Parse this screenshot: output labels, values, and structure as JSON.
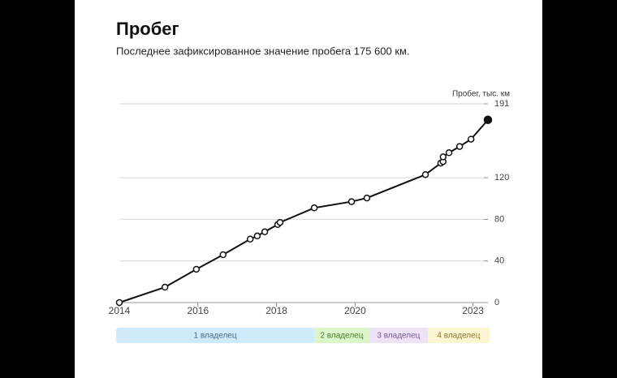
{
  "chart_data": {
    "type": "line",
    "title": "Пробег",
    "subtitle": "Последнее зафиксированное значение пробега 175 600 км.",
    "y_axis_label": "Пробег, тыс. км",
    "x": [
      2014.0,
      2015.16,
      2015.96,
      2016.64,
      2017.33,
      2017.51,
      2017.7,
      2018.03,
      2018.09,
      2018.96,
      2019.91,
      2020.3,
      2021.79,
      2022.18,
      2022.24,
      2022.24,
      2022.39,
      2022.66,
      2022.95,
      2023.38
    ],
    "series": [
      {
        "name": "Пробег",
        "color": "#111111",
        "values": [
          0,
          14.8,
          32,
          46,
          61,
          64,
          68,
          75,
          77,
          91,
          97,
          100.5,
          123,
          134,
          135.5,
          140,
          144,
          150,
          157,
          175.6
        ]
      }
    ],
    "xlim": [
      2014,
      2023.38
    ],
    "xticks": [
      2014,
      2016,
      2018,
      2020,
      2023
    ],
    "ylim": [
      0,
      191
    ],
    "yticks": [
      0,
      40,
      80,
      120,
      191
    ],
    "grid": true,
    "owners": [
      {
        "label": "1 владелец",
        "start": 2013.92,
        "end": 2018.96,
        "color": "#cfeafa",
        "text_color": "#4a6b80"
      },
      {
        "label": "2 владелец",
        "start": 2018.96,
        "end": 2020.36,
        "color": "#dcf5c9",
        "text_color": "#4d7a2e"
      },
      {
        "label": "3 владелец",
        "start": 2020.36,
        "end": 2021.85,
        "color": "#ede2f6",
        "text_color": "#7a5a92"
      },
      {
        "label": "4 владелец",
        "start": 2021.85,
        "end": 2023.42,
        "color": "#fbf5d2",
        "text_color": "#8a7a30"
      }
    ]
  }
}
